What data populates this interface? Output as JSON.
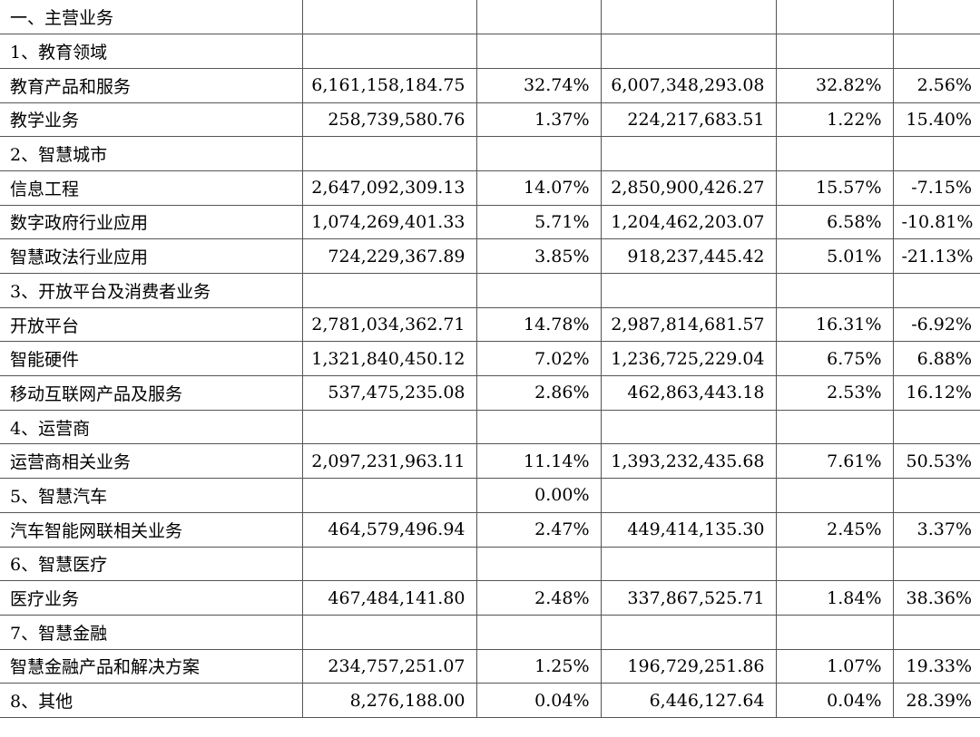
{
  "rows": [
    [
      "一、主营业务",
      "",
      "",
      "",
      "",
      ""
    ],
    [
      "1、教育领域",
      "",
      "",
      "",
      "",
      ""
    ],
    [
      "教育产品和服务",
      "6,161,158,184.75",
      "32.74%",
      "6,007,348,293.08",
      "32.82%",
      "2.56%"
    ],
    [
      "教学业务",
      "258,739,580.76",
      "1.37%",
      "224,217,683.51",
      "1.22%",
      "15.40%"
    ],
    [
      "2、智慧城市",
      "",
      "",
      "",
      "",
      ""
    ],
    [
      "信息工程",
      "2,647,092,309.13",
      "14.07%",
      "2,850,900,426.27",
      "15.57%",
      "-7.15%"
    ],
    [
      "数字政府行业应用",
      "1,074,269,401.33",
      "5.71%",
      "1,204,462,203.07",
      "6.58%",
      "-10.81%"
    ],
    [
      "智慧政法行业应用",
      "724,229,367.89",
      "3.85%",
      "918,237,445.42",
      "5.01%",
      "-21.13%"
    ],
    [
      "3、开放平台及消费者业务",
      "",
      "",
      "",
      "",
      ""
    ],
    [
      "开放平台",
      "2,781,034,362.71",
      "14.78%",
      "2,987,814,681.57",
      "16.31%",
      "-6.92%"
    ],
    [
      "智能硬件",
      "1,321,840,450.12",
      "7.02%",
      "1,236,725,229.04",
      "6.75%",
      "6.88%"
    ],
    [
      "移动互联网产品及服务",
      "537,475,235.08",
      "2.86%",
      "462,863,443.18",
      "2.53%",
      "16.12%"
    ],
    [
      "4、运营商",
      "",
      "",
      "",
      "",
      ""
    ],
    [
      "运营商相关业务",
      "2,097,231,963.11",
      "11.14%",
      "1,393,232,435.68",
      "7.61%",
      "50.53%"
    ],
    [
      "5、智慧汽车",
      "",
      "0.00%",
      "",
      "",
      ""
    ],
    [
      "汽车智能网联相关业务",
      "464,579,496.94",
      "2.47%",
      "449,414,135.30",
      "2.45%",
      "3.37%"
    ],
    [
      "6、智慧医疗",
      "",
      "",
      "",
      "",
      ""
    ],
    [
      "医疗业务",
      "467,484,141.80",
      "2.48%",
      "337,867,525.71",
      "1.84%",
      "38.36%"
    ],
    [
      "7、智慧金融",
      "",
      "",
      "",
      "",
      ""
    ],
    [
      "智慧金融产品和解决方案",
      "234,757,251.07",
      "1.25%",
      "196,729,251.86",
      "1.07%",
      "19.33%"
    ],
    [
      "8、其他",
      "8,276,188.00",
      "0.04%",
      "6,446,127.64",
      "0.04%",
      "28.39%"
    ]
  ]
}
